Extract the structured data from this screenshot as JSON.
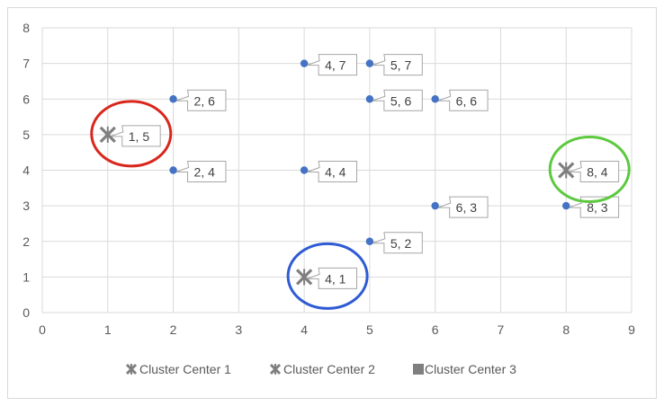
{
  "chart_data": {
    "type": "scatter",
    "title": "",
    "xlabel": "",
    "ylabel": "",
    "xlim": [
      0,
      9
    ],
    "ylim": [
      0,
      8
    ],
    "xticks": [
      "0",
      "1",
      "2",
      "3",
      "4",
      "5",
      "6",
      "7",
      "8",
      "9"
    ],
    "yticks": [
      "0",
      "1",
      "2",
      "3",
      "4",
      "5",
      "6",
      "7",
      "8"
    ],
    "grid": true,
    "legend_position": "bottom",
    "points": [
      {
        "x": 2,
        "y": 6,
        "label": "2, 6"
      },
      {
        "x": 2,
        "y": 4,
        "label": "2, 4"
      },
      {
        "x": 4,
        "y": 7,
        "label": "4, 7"
      },
      {
        "x": 4,
        "y": 4,
        "label": "4, 4"
      },
      {
        "x": 5,
        "y": 7,
        "label": "5, 7"
      },
      {
        "x": 5,
        "y": 6,
        "label": "5, 6"
      },
      {
        "x": 5,
        "y": 2,
        "label": "5, 2"
      },
      {
        "x": 6,
        "y": 6,
        "label": "6, 6"
      },
      {
        "x": 6,
        "y": 3,
        "label": "6, 3"
      },
      {
        "x": 8,
        "y": 3,
        "label": "8, 3"
      }
    ],
    "series": [
      {
        "name": "Cluster Center 1",
        "x": 1,
        "y": 5,
        "label": "1, 5",
        "ring_color": "#d9261c"
      },
      {
        "name": "Cluster Center 2",
        "x": 4,
        "y": 1,
        "label": "4, 1",
        "ring_color": "#2f5bd4"
      },
      {
        "name": "Cluster Center 3",
        "x": 8,
        "y": 4,
        "label": "8, 4",
        "ring_color": "#5cc93f"
      }
    ],
    "colors": {
      "point": "#4472c4",
      "center_marker": "#7f7f7f",
      "grid": "#d9d9d9",
      "label_border": "#a6a6a6"
    }
  }
}
